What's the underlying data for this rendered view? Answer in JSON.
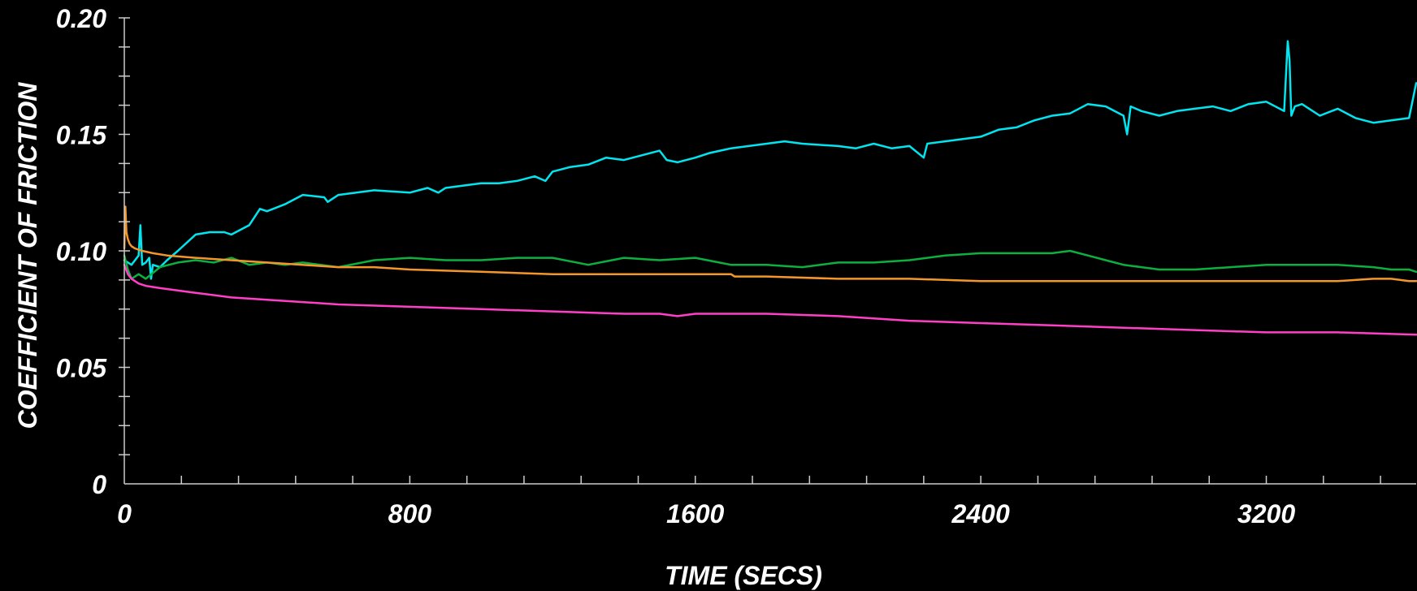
{
  "chart_data": {
    "type": "line",
    "xlabel": "TIME (SECS)",
    "ylabel": "COEFFICIENT OF FRICTION",
    "xlim": [
      0,
      3620
    ],
    "ylim": [
      0,
      0.2
    ],
    "x_ticks": [
      0,
      800,
      1600,
      2400,
      3200
    ],
    "x_tick_labels": [
      "0",
      "800",
      "1600",
      "2400",
      "3200"
    ],
    "y_ticks": [
      0,
      0.05,
      0.1,
      0.15,
      0.2
    ],
    "y_tick_labels": [
      "0",
      "0.05",
      "0.10",
      "0.15",
      "0.20"
    ],
    "x_minor_step": 160,
    "y_minor_step": 0.0125,
    "grid": false,
    "series": [
      {
        "color": "#00e5f0",
        "x": [
          0,
          20,
          40,
          45,
          50,
          60,
          70,
          75,
          80,
          100,
          120,
          150,
          200,
          240,
          280,
          300,
          350,
          380,
          400,
          450,
          500,
          560,
          570,
          600,
          700,
          800,
          850,
          880,
          900,
          1000,
          1050,
          1100,
          1150,
          1180,
          1200,
          1250,
          1300,
          1350,
          1400,
          1450,
          1500,
          1520,
          1550,
          1600,
          1640,
          1700,
          1750,
          1800,
          1850,
          1900,
          2000,
          2050,
          2100,
          2150,
          2200,
          2240,
          2250,
          2300,
          2350,
          2400,
          2450,
          2500,
          2550,
          2600,
          2650,
          2700,
          2750,
          2800,
          2810,
          2820,
          2850,
          2900,
          2950,
          3000,
          3050,
          3100,
          3150,
          3200,
          3250,
          3260,
          3265,
          3270,
          3280,
          3300,
          3350,
          3400,
          3450,
          3500,
          3550,
          3600,
          3620
        ],
        "y": [
          0.096,
          0.094,
          0.098,
          0.111,
          0.094,
          0.095,
          0.097,
          0.088,
          0.094,
          0.093,
          0.096,
          0.1,
          0.107,
          0.108,
          0.108,
          0.107,
          0.111,
          0.118,
          0.117,
          0.12,
          0.124,
          0.123,
          0.121,
          0.124,
          0.126,
          0.125,
          0.127,
          0.125,
          0.127,
          0.129,
          0.129,
          0.13,
          0.132,
          0.13,
          0.134,
          0.136,
          0.137,
          0.14,
          0.139,
          0.141,
          0.143,
          0.139,
          0.138,
          0.14,
          0.142,
          0.144,
          0.145,
          0.146,
          0.147,
          0.146,
          0.145,
          0.144,
          0.146,
          0.144,
          0.145,
          0.14,
          0.146,
          0.147,
          0.148,
          0.149,
          0.152,
          0.153,
          0.156,
          0.158,
          0.159,
          0.163,
          0.162,
          0.158,
          0.15,
          0.162,
          0.16,
          0.158,
          0.16,
          0.161,
          0.162,
          0.16,
          0.163,
          0.164,
          0.16,
          0.19,
          0.182,
          0.158,
          0.162,
          0.163,
          0.158,
          0.161,
          0.157,
          0.155,
          0.156,
          0.157,
          0.172
        ]
      },
      {
        "color": "#0db040",
        "x": [
          0,
          10,
          20,
          40,
          60,
          100,
          150,
          200,
          250,
          300,
          350,
          400,
          450,
          500,
          550,
          600,
          700,
          800,
          900,
          1000,
          1100,
          1200,
          1300,
          1400,
          1500,
          1600,
          1700,
          1800,
          1900,
          2000,
          2100,
          2200,
          2300,
          2400,
          2500,
          2600,
          2650,
          2700,
          2750,
          2800,
          2850,
          2900,
          3000,
          3100,
          3200,
          3300,
          3400,
          3500,
          3550,
          3600,
          3620
        ],
        "y": [
          0.098,
          0.092,
          0.088,
          0.09,
          0.088,
          0.093,
          0.095,
          0.096,
          0.095,
          0.097,
          0.094,
          0.095,
          0.094,
          0.095,
          0.094,
          0.093,
          0.096,
          0.097,
          0.096,
          0.096,
          0.097,
          0.097,
          0.094,
          0.097,
          0.096,
          0.097,
          0.094,
          0.094,
          0.093,
          0.095,
          0.095,
          0.096,
          0.098,
          0.099,
          0.099,
          0.099,
          0.1,
          0.098,
          0.096,
          0.094,
          0.093,
          0.092,
          0.092,
          0.093,
          0.094,
          0.094,
          0.094,
          0.093,
          0.092,
          0.092,
          0.091
        ]
      },
      {
        "color": "#f5962a",
        "x": [
          0,
          3,
          6,
          10,
          15,
          20,
          30,
          50,
          80,
          120,
          200,
          300,
          400,
          500,
          600,
          700,
          800,
          1000,
          1200,
          1400,
          1600,
          1700,
          1710,
          1800,
          2000,
          2200,
          2400,
          2600,
          2800,
          3000,
          3200,
          3300,
          3400,
          3500,
          3550,
          3600,
          3620
        ],
        "y": [
          0.101,
          0.119,
          0.108,
          0.105,
          0.103,
          0.102,
          0.101,
          0.1,
          0.099,
          0.098,
          0.097,
          0.096,
          0.095,
          0.094,
          0.093,
          0.093,
          0.092,
          0.091,
          0.09,
          0.09,
          0.09,
          0.09,
          0.089,
          0.089,
          0.088,
          0.088,
          0.087,
          0.087,
          0.087,
          0.087,
          0.087,
          0.087,
          0.087,
          0.088,
          0.088,
          0.087,
          0.087
        ]
      },
      {
        "color": "#ff3fc8",
        "x": [
          0,
          5,
          10,
          20,
          40,
          60,
          100,
          200,
          300,
          400,
          500,
          600,
          800,
          1000,
          1200,
          1400,
          1500,
          1550,
          1600,
          1650,
          1800,
          2000,
          2200,
          2400,
          2600,
          2800,
          3000,
          3200,
          3400,
          3620
        ],
        "y": [
          0.094,
          0.092,
          0.09,
          0.088,
          0.086,
          0.085,
          0.084,
          0.082,
          0.08,
          0.079,
          0.078,
          0.077,
          0.076,
          0.075,
          0.074,
          0.073,
          0.073,
          0.072,
          0.073,
          0.073,
          0.073,
          0.072,
          0.07,
          0.069,
          0.068,
          0.067,
          0.066,
          0.065,
          0.065,
          0.064
        ]
      }
    ]
  }
}
